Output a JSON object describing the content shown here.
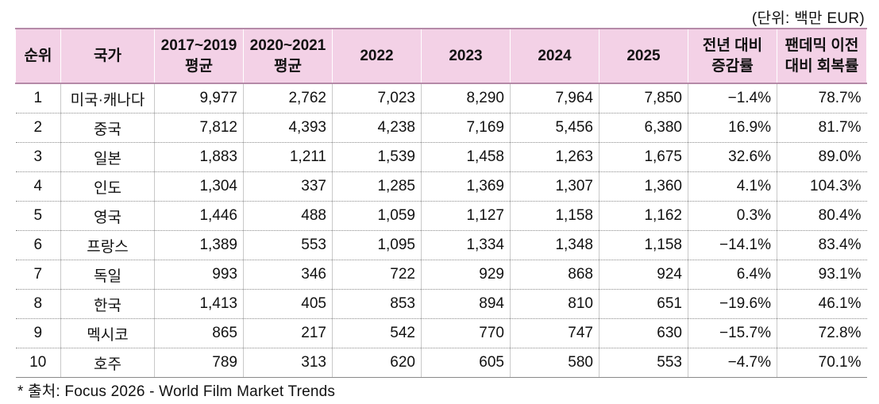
{
  "unit_label": "(단위: 백만 EUR)",
  "headers": [
    "순위",
    "국가",
    "2017~2019\n평균",
    "2020~2021\n평균",
    "2022",
    "2023",
    "2024",
    "2025",
    "전년 대비\n증감률",
    "팬데믹 이전\n대비 회복률"
  ],
  "rows": [
    [
      "1",
      "미국·캐나다",
      "9,977",
      "2,762",
      "7,023",
      "8,290",
      "7,964",
      "7,850",
      "−1.4%",
      "78.7%"
    ],
    [
      "2",
      "중국",
      "7,812",
      "4,393",
      "4,238",
      "7,169",
      "5,456",
      "6,380",
      "16.9%",
      "81.7%"
    ],
    [
      "3",
      "일본",
      "1,883",
      "1,211",
      "1,539",
      "1,458",
      "1,263",
      "1,675",
      "32.6%",
      "89.0%"
    ],
    [
      "4",
      "인도",
      "1,304",
      "337",
      "1,285",
      "1,369",
      "1,307",
      "1,360",
      "4.1%",
      "104.3%"
    ],
    [
      "5",
      "영국",
      "1,446",
      "488",
      "1,059",
      "1,127",
      "1,158",
      "1,162",
      "0.3%",
      "80.4%"
    ],
    [
      "6",
      "프랑스",
      "1,389",
      "553",
      "1,095",
      "1,334",
      "1,348",
      "1,158",
      "−14.1%",
      "83.4%"
    ],
    [
      "7",
      "독일",
      "993",
      "346",
      "722",
      "929",
      "868",
      "924",
      "6.4%",
      "93.1%"
    ],
    [
      "8",
      "한국",
      "1,413",
      "405",
      "853",
      "894",
      "810",
      "651",
      "−19.6%",
      "46.1%"
    ],
    [
      "9",
      "멕시코",
      "865",
      "217",
      "542",
      "770",
      "747",
      "630",
      "−15.7%",
      "72.8%"
    ],
    [
      "10",
      "호주",
      "789",
      "313",
      "620",
      "605",
      "580",
      "553",
      "−4.7%",
      "70.1%"
    ]
  ],
  "source_note": "* 출처: Focus 2026 - World Film Market Trends",
  "colors": {
    "header_bg": "#f3d1e6",
    "header_rule": "#b58aa8"
  }
}
